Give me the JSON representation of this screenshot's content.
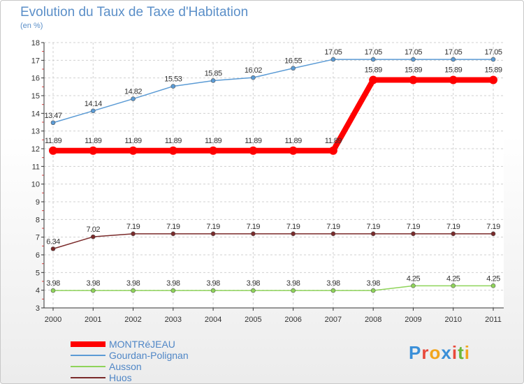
{
  "title": "Evolution du Taux de Taxe d'Habitation",
  "unit": "(en %)",
  "logo": {
    "text": "Proxiti",
    "colors": [
      "#3a8fd8",
      "#e8483a",
      "#f2a51c",
      "#3a8fd8",
      "#e8483a",
      "#6cb83a",
      "#f2a51c"
    ]
  },
  "chart_data": {
    "type": "line",
    "x": [
      "2000",
      "2001",
      "2002",
      "2003",
      "2004",
      "2005",
      "2006",
      "2007",
      "2008",
      "2009",
      "2010",
      "2011"
    ],
    "ylim": [
      3,
      18
    ],
    "yticks": [
      3,
      4,
      5,
      6,
      7,
      8,
      9,
      10,
      11,
      12,
      13,
      14,
      15,
      16,
      17,
      18
    ],
    "grid": true,
    "legend_position": "bottom-left",
    "series": [
      {
        "name": "MONTRéJEAU",
        "color": "#ff0000",
        "values": [
          11.89,
          11.89,
          11.89,
          11.89,
          11.89,
          11.89,
          11.89,
          11.89,
          15.89,
          15.89,
          15.89,
          15.89
        ],
        "labels": [
          "11.89",
          "11.89",
          "11.89",
          "11.89",
          "11.89",
          "11.89",
          "11.89",
          "11.89",
          "15.89",
          "15.89",
          "15.89",
          "15.89"
        ]
      },
      {
        "name": "Gourdan-Polignan",
        "color": "#5b9bd5",
        "values": [
          13.47,
          14.14,
          14.82,
          15.53,
          15.85,
          16.02,
          16.55,
          17.05,
          17.05,
          17.05,
          17.05,
          17.05
        ],
        "labels": [
          "13.47",
          "14.14",
          "14.82",
          "15.53",
          "15.85",
          "16.02",
          "16.55",
          "17.05",
          "17.05",
          "17.05",
          "17.05",
          "17.05"
        ]
      },
      {
        "name": "Ausson",
        "color": "#8fd45a",
        "values": [
          3.98,
          3.98,
          3.98,
          3.98,
          3.98,
          3.98,
          3.98,
          3.98,
          3.98,
          4.25,
          4.25,
          4.25
        ],
        "labels": [
          "3.98",
          "3.98",
          "3.98",
          "3.98",
          "3.98",
          "3.98",
          "3.98",
          "3.98",
          "3.98",
          "4.25",
          "4.25",
          "4.25"
        ]
      },
      {
        "name": "Huos",
        "color": "#7a2a2a",
        "values": [
          6.34,
          7.02,
          7.19,
          7.19,
          7.19,
          7.19,
          7.19,
          7.19,
          7.19,
          7.19,
          7.19,
          7.19
        ],
        "labels": [
          "6.34",
          "7.02",
          "7.19",
          "7.19",
          "7.19",
          "7.19",
          "7.19",
          "7.19",
          "7.19",
          "7.19",
          "7.19",
          "7.19"
        ]
      }
    ]
  }
}
